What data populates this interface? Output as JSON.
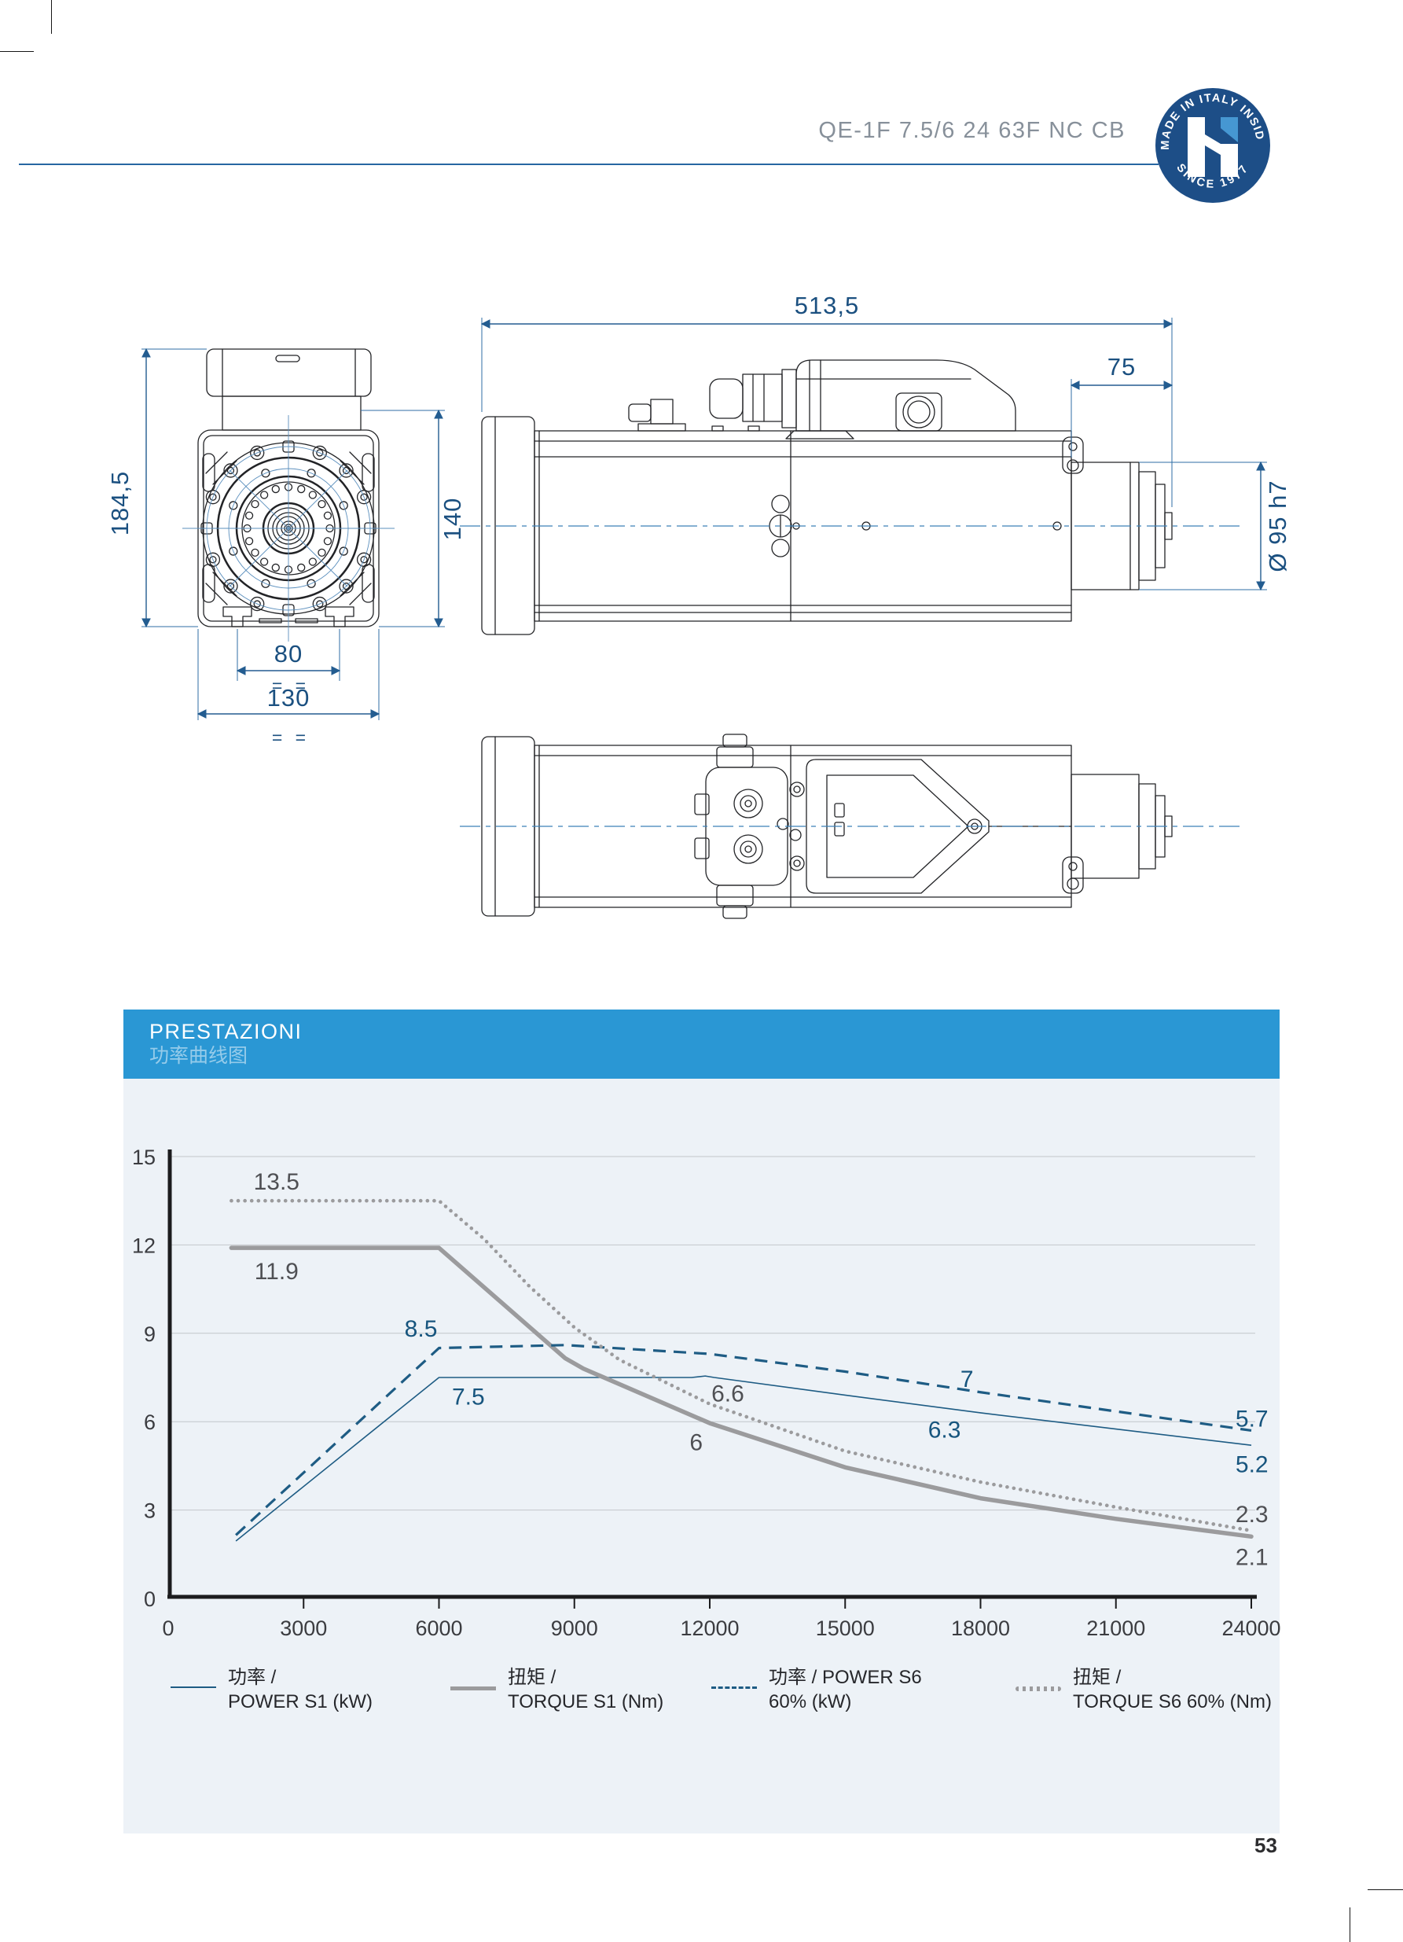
{
  "header": {
    "model": "QE-1F 7.5/6 24 63F NC CB",
    "badge": {
      "arc_top": "MADE IN ITALY INSIDE",
      "arc_bottom": "SINCE 1977"
    }
  },
  "colors": {
    "header_bar_blue": "#2a97d4",
    "accent_blue": "#1e5c84",
    "curve_gray": "#9b9b9d",
    "dimension_blue": "#1b5080",
    "badge_blue": "#1d4e87",
    "badge_flag_blue": "#4697d2",
    "panel_background": "#edf2f7"
  },
  "drawings": {
    "front": {
      "overall_height": "184,5",
      "body_height": "140",
      "slot_spacing": "80",
      "overall_width": "130",
      "sym_80": "= =",
      "sym_130": "= ="
    },
    "side": {
      "overall_length": "513,5",
      "nose_length": "75",
      "nose_diameter": "Ø 95 h7"
    }
  },
  "performance": {
    "section_title": "PRESTAZIONI",
    "section_subtitle": "功率曲线图"
  },
  "chart_data": {
    "type": "line",
    "title": "PRESTAZIONI / 功率曲线图",
    "xlabel": "",
    "ylabel": "",
    "xlim": [
      0,
      24000
    ],
    "ylim": [
      0,
      15
    ],
    "grid": "horizontal",
    "legend_position": "bottom",
    "x_ticks": [
      0,
      3000,
      6000,
      9000,
      12000,
      15000,
      18000,
      21000,
      24000
    ],
    "y_ticks": [
      0,
      3,
      6,
      9,
      12,
      15
    ],
    "series": [
      {
        "name": "POWER S1 (kW)",
        "style": "thin-solid",
        "color": "#1e5c84",
        "label_color": "#17557e",
        "points": [
          [
            1500,
            1.95
          ],
          [
            6000,
            7.5
          ],
          [
            11600,
            7.5
          ],
          [
            11900,
            7.55
          ],
          [
            12100,
            7.5
          ],
          [
            15000,
            6.9
          ],
          [
            18000,
            6.3
          ],
          [
            21000,
            5.75
          ],
          [
            24000,
            5.2
          ]
        ],
        "labels": [
          {
            "t": "7.5",
            "x": 6650,
            "y": 6.85
          },
          {
            "t": "6.3",
            "x": 17200,
            "y": 5.72
          },
          {
            "t": "5.2",
            "x": 23650,
            "y": 4.55,
            "anchor": "start"
          }
        ]
      },
      {
        "name": "TORQUE S1 (Nm)",
        "style": "thick-solid",
        "color": "#9b9b9d",
        "label_color": "#4f5054",
        "points": [
          [
            1400,
            11.9
          ],
          [
            6000,
            11.9
          ],
          [
            8800,
            8.15
          ],
          [
            9200,
            7.8
          ],
          [
            12000,
            5.95
          ],
          [
            15000,
            4.45
          ],
          [
            18000,
            3.4
          ],
          [
            21000,
            2.7
          ],
          [
            24000,
            2.1
          ]
        ],
        "labels": [
          {
            "t": "11.9",
            "x": 2400,
            "y": 11.1
          },
          {
            "t": "6",
            "x": 11700,
            "y": 5.3
          },
          {
            "t": "2.1",
            "x": 23650,
            "y": 1.4,
            "anchor": "start"
          }
        ]
      },
      {
        "name": "POWER S6 60% (kW)",
        "style": "dashed",
        "color": "#1e5c84",
        "label_color": "#17557e",
        "points": [
          [
            1500,
            2.15
          ],
          [
            6000,
            8.5
          ],
          [
            8800,
            8.6
          ],
          [
            12000,
            8.3
          ],
          [
            15000,
            7.7
          ],
          [
            18000,
            7.0
          ],
          [
            21000,
            6.35
          ],
          [
            24000,
            5.7
          ]
        ],
        "labels": [
          {
            "t": "8.5",
            "x": 5600,
            "y": 9.15
          },
          {
            "t": "7",
            "x": 17700,
            "y": 7.45
          },
          {
            "t": "5.7",
            "x": 23650,
            "y": 6.1,
            "anchor": "start"
          }
        ]
      },
      {
        "name": "TORQUE S6 60% (Nm)",
        "style": "dotted",
        "color": "#9b9b9d",
        "label_color": "#4f5054",
        "points": [
          [
            1400,
            13.5
          ],
          [
            6000,
            13.5
          ],
          [
            7000,
            12.2
          ],
          [
            8000,
            10.6
          ],
          [
            9000,
            9.2
          ],
          [
            10000,
            8.1
          ],
          [
            12000,
            6.6
          ],
          [
            15000,
            5.0
          ],
          [
            18000,
            3.95
          ],
          [
            21000,
            3.1
          ],
          [
            24000,
            2.3
          ]
        ],
        "labels": [
          {
            "t": "13.5",
            "x": 2400,
            "y": 14.15
          },
          {
            "t": "6.6",
            "x": 12400,
            "y": 6.95
          },
          {
            "t": "2.3",
            "x": 23650,
            "y": 2.85,
            "anchor": "start"
          }
        ]
      }
    ]
  },
  "legend": [
    {
      "line1": "功率 /",
      "line2": "POWER S1 (kW)"
    },
    {
      "line1": "扭矩 /",
      "line2": "TORQUE S1 (Nm)"
    },
    {
      "line1": "功率 / POWER S6",
      "line2": "60% (kW)"
    },
    {
      "line1": "扭矩 /",
      "line2": "TORQUE S6 60% (Nm)"
    }
  ],
  "page": {
    "number": "53"
  }
}
